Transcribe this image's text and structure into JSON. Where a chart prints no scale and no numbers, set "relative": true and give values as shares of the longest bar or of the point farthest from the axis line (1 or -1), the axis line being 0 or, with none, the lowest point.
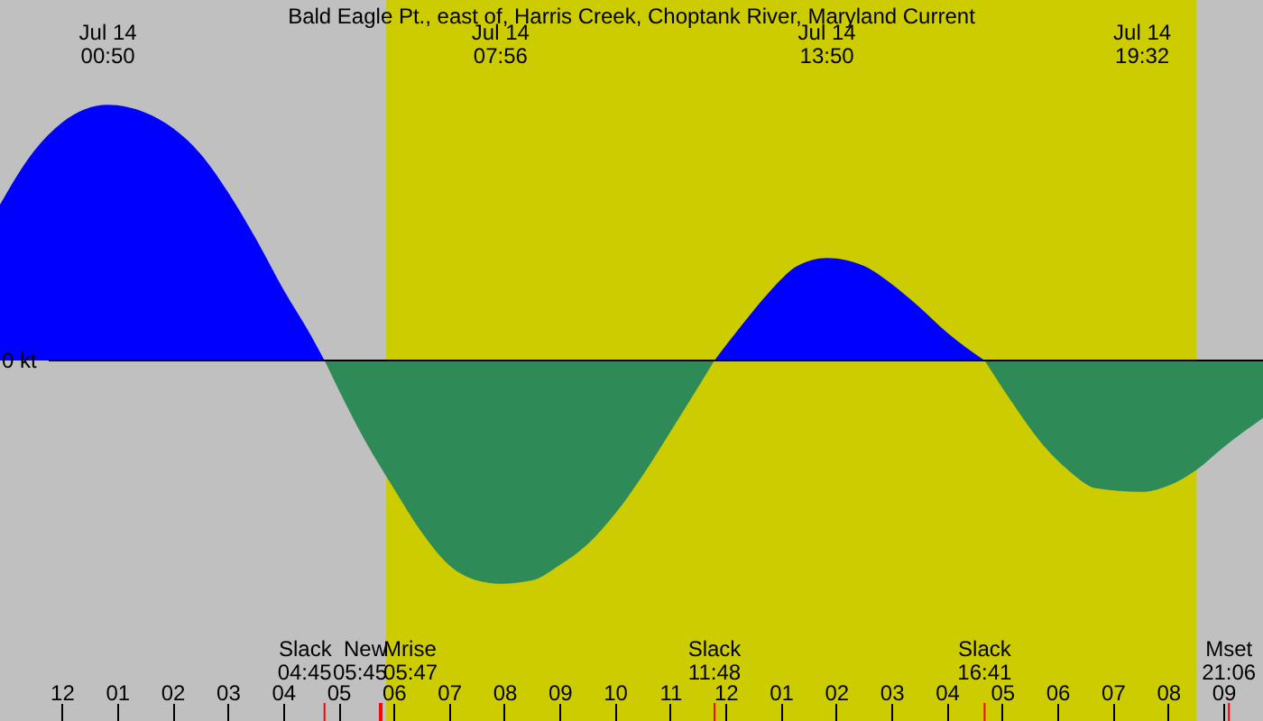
{
  "chart_data": {
    "type": "area",
    "title": "Bald Eagle Pt., east of, Harris Creek, Choptank River, Maryland Current",
    "relative": true,
    "xlim": [
      "--07-13T22:53",
      "--07-14T21:43"
    ],
    "xticks": [
      {
        "value": "--07-14T00:00",
        "label": "12"
      },
      {
        "value": "--07-14T01:00",
        "label": "01"
      },
      {
        "value": "--07-14T02:00",
        "label": "02"
      },
      {
        "value": "--07-14T03:00",
        "label": "03"
      },
      {
        "value": "--07-14T04:00",
        "label": "04"
      },
      {
        "value": "--07-14T05:00",
        "label": "05"
      },
      {
        "value": "--07-14T06:00",
        "label": "06"
      },
      {
        "value": "--07-14T07:00",
        "label": "07"
      },
      {
        "value": "--07-14T08:00",
        "label": "08"
      },
      {
        "value": "--07-14T09:00",
        "label": "09"
      },
      {
        "value": "--07-14T10:00",
        "label": "10"
      },
      {
        "value": "--07-14T11:00",
        "label": "11"
      },
      {
        "value": "--07-14T12:00",
        "label": "12"
      },
      {
        "value": "--07-14T13:00",
        "label": "01"
      },
      {
        "value": "--07-14T14:00",
        "label": "02"
      },
      {
        "value": "--07-14T15:00",
        "label": "03"
      },
      {
        "value": "--07-14T16:00",
        "label": "04"
      },
      {
        "value": "--07-14T17:00",
        "label": "05"
      },
      {
        "value": "--07-14T18:00",
        "label": "06"
      },
      {
        "value": "--07-14T19:00",
        "label": "07"
      },
      {
        "value": "--07-14T20:00",
        "label": "08"
      },
      {
        "value": "--07-14T21:00",
        "label": "09"
      }
    ],
    "x2lim": [
      "--07-13T22:53",
      "--07-14T21:43"
    ],
    "x2ticks": [
      {
        "value": "--07-14T00:50",
        "label": "Jul 14\n00:50"
      },
      {
        "value": "--07-14T07:56",
        "label": "Jul 14\n07:56"
      },
      {
        "value": "--07-14T13:50",
        "label": "Jul 14\n13:50"
      },
      {
        "value": "--07-14T19:32",
        "label": "Jul 14\n19:32"
      }
    ],
    "series": [
      {
        "color": "#0000ff",
        "x": [
          "--07-13T22:53",
          "--07-13T23:30",
          "--07-14T00:00",
          "--07-14T00:50",
          "--07-14T01:30",
          "--07-14T02:00",
          "--07-14T02:30",
          "--07-14T03:00",
          "--07-14T03:30",
          "--07-14T04:00",
          "--07-14T04:30",
          "--07-14T04:45"
        ],
        "values": [
          0.61,
          0.82,
          0.93,
          1,
          0.97,
          0.91,
          0.81,
          0.66,
          0.48,
          0.28,
          0.1,
          0
        ]
      },
      {
        "color": "#2e8b57",
        "x": [
          "--07-14T04:45",
          "--07-14T05:30",
          "--07-14T06:00",
          "--07-14T06:30",
          "--07-14T07:00",
          "--07-14T07:30",
          "--07-14T07:56",
          "--07-14T08:30",
          "--07-14T09:00",
          "--07-14T09:30",
          "--07-14T10:00",
          "--07-14T10:30",
          "--07-14T11:00",
          "--07-14T11:48"
        ],
        "values": [
          0,
          -0.32,
          -0.5,
          -0.67,
          -0.8,
          -0.86,
          -0.873,
          -0.86,
          -0.8,
          -0.72,
          -0.6,
          -0.45,
          -0.28,
          0
        ]
      },
      {
        "color": "#0000ff",
        "x": [
          "--07-14T11:48",
          "--07-14T12:18",
          "--07-14T12:48",
          "--07-14T13:18",
          "--07-14T13:50",
          "--07-14T14:30",
          "--07-14T15:00",
          "--07-14T15:30",
          "--07-14T16:00",
          "--07-14T16:41"
        ],
        "values": [
          0,
          0.14,
          0.27,
          0.37,
          0.401,
          0.37,
          0.3,
          0.21,
          0.11,
          0
        ]
      },
      {
        "color": "#2e8b57",
        "x": [
          "--07-14T16:41",
          "--07-14T17:12",
          "--07-14T17:42",
          "--07-14T18:12",
          "--07-14T18:42",
          "--07-14T19:32",
          "--07-14T20:00",
          "--07-14T20:30",
          "--07-14T21:00",
          "--07-14T21:43"
        ],
        "values": [
          0,
          -0.17,
          -0.32,
          -0.43,
          -0.5,
          -0.514,
          -0.49,
          -0.43,
          -0.34,
          -0.225
        ]
      }
    ],
    "bands": [
      {
        "axis": "x",
        "from": "--07-14T05:52",
        "to": "--07-14T20:31",
        "color": "#cccc00"
      }
    ],
    "ref_lines": [
      {
        "axis": "y",
        "value": 0,
        "label": "0 kt",
        "color": "#000000"
      },
      {
        "axis": "x",
        "value": "--07-14T04:45",
        "label": "Slack\n04:45",
        "color": "#ff0000"
      },
      {
        "axis": "x",
        "value": "--07-14T05:45",
        "label": "New\n05:45",
        "color": "#ff0000"
      },
      {
        "axis": "x",
        "value": "--07-14T05:47",
        "label": "Mrise\n05:47",
        "color": "#ff0000"
      },
      {
        "axis": "x",
        "value": "--07-14T11:48",
        "label": "Slack\n11:48",
        "color": "#ff0000"
      },
      {
        "axis": "x",
        "value": "--07-14T16:41",
        "label": "Slack\n16:41",
        "color": "#ff0000"
      },
      {
        "axis": "x",
        "value": "--07-14T21:06",
        "label": "Mset\n21:06",
        "color": "#ff0000"
      }
    ]
  }
}
